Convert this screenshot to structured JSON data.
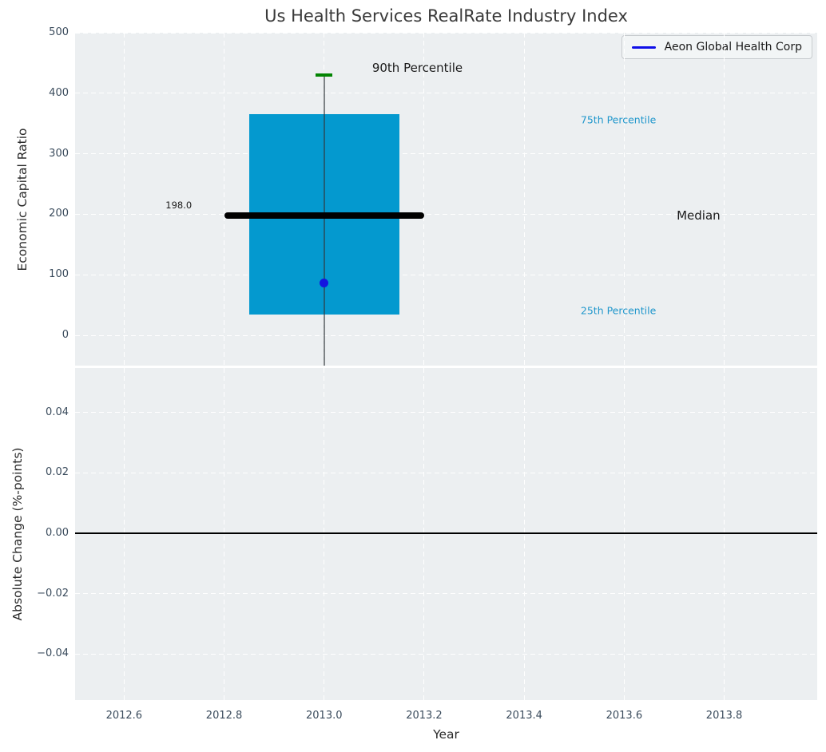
{
  "title": "Us Health Services RealRate Industry Index",
  "legend": {
    "label": "Aeon Global Health Corp",
    "line_color": "#0f0fe8"
  },
  "colors": {
    "plot_bg": "#eceff1",
    "grid": "#ffffff",
    "tick_label": "#3a4b5c",
    "box_fill": "#0499cf",
    "median_line": "#000000",
    "whisker": "rgba(50,55,60,0.6)",
    "cap_green": "#028402",
    "marker_blue": "#1414e0",
    "annotation_cyan": "#2097cc",
    "annotation_dark": "#1a1a1a",
    "zero_line": "#000000"
  },
  "chart_data": [
    {
      "type": "boxplot",
      "title": "Us Health Services RealRate Industry Index",
      "ylabel": "Economic Capital Ratio",
      "ylim": [
        -50,
        500
      ],
      "yticks": [
        0,
        100,
        200,
        300,
        400,
        500
      ],
      "ytick_labels": [
        "0",
        "100",
        "200",
        "300",
        "400",
        "500"
      ],
      "xlim": [
        2012.502,
        2013.986
      ],
      "xticks": [
        2012.6,
        2012.8,
        2013.0,
        2013.2,
        2013.4,
        2013.6,
        2013.8
      ],
      "grid": true,
      "legend_position": "upper right",
      "legend_entries": [
        "Aeon Global Health Corp"
      ],
      "box": {
        "x": 2013.0,
        "width": 0.3,
        "q1": 35,
        "q3": 365,
        "median": 198.0,
        "median_label": "198.0",
        "median_span": [
          2012.8,
          2013.2
        ],
        "whisker_high": 430,
        "whisker_low": -50,
        "cap_width": 0.034
      },
      "marker": {
        "series": "Aeon Global Health Corp",
        "x": 2013.0,
        "y": 87
      },
      "annotations": [
        {
          "text": "198.0",
          "x": 2012.683,
          "y": 215,
          "color": "#1a1a1a",
          "size": 11.5
        },
        {
          "text": "90th Percentile",
          "x": 2013.096,
          "y": 442,
          "color": "#1a1a1a",
          "size": 15
        },
        {
          "text": "75th Percentile",
          "x": 2013.513,
          "y": 356,
          "color": "#2097cc",
          "size": 12.5
        },
        {
          "text": "Median",
          "x": 2013.705,
          "y": 198,
          "color": "#1a1a1a",
          "size": 15
        },
        {
          "text": "25th Percentile",
          "x": 2013.513,
          "y": 41,
          "color": "#2097cc",
          "size": 12.5
        }
      ]
    },
    {
      "type": "line",
      "ylabel": "Absolute Change (%-points)",
      "xlabel": "Year",
      "ylim": [
        -0.0553,
        0.0547
      ],
      "yticks": [
        0.04,
        0.02,
        0.0,
        -0.02,
        -0.04
      ],
      "ytick_labels": [
        "0.04",
        "0.02",
        "0.00",
        "−0.02",
        "−0.04"
      ],
      "xlim": [
        2012.502,
        2013.986
      ],
      "xticks": [
        2012.6,
        2012.8,
        2013.0,
        2013.2,
        2013.4,
        2013.6,
        2013.8
      ],
      "xtick_labels": [
        "2012.6",
        "2012.8",
        "2013.0",
        "2013.2",
        "2013.4",
        "2013.6",
        "2013.8"
      ],
      "grid": true,
      "zero_line_y": 0.0,
      "series": []
    }
  ]
}
